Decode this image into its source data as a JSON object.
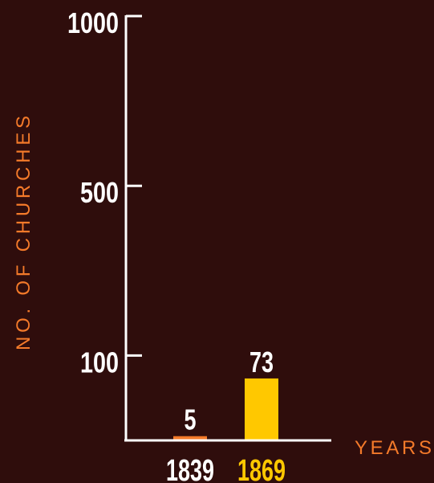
{
  "colors": {
    "background": "#2f0d0c",
    "axis": "#ffffff",
    "label_text": "#ffffff",
    "axis_title": "#f47a2a",
    "bar_1839": "#f47a2a",
    "bar_1869": "#ffc800"
  },
  "chart_data": {
    "type": "bar",
    "categories": [
      "1839",
      "1869"
    ],
    "values": [
      5,
      73
    ],
    "value_labels": [
      "5",
      "73"
    ],
    "category_colors": [
      "#ffffff",
      "#ffc800"
    ],
    "bar_colors": [
      "#f47a2a",
      "#ffc800"
    ],
    "ylabel": "NO. OF CHURCHES",
    "xlabel": "YEARS",
    "scale": "non-linear (0, 100, 500, 1000 equally spaced)",
    "yticks": [
      100,
      500,
      1000
    ],
    "ytick_labels": [
      "100",
      "500",
      "1000"
    ],
    "grid": false
  }
}
